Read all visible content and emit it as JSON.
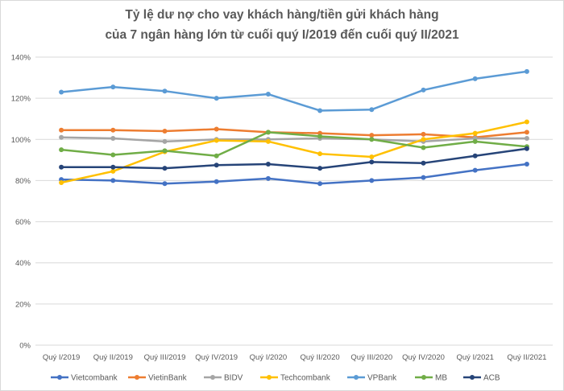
{
  "chart_data": {
    "type": "line",
    "title": "Tỷ lệ dư nợ cho vay khách hàng/tiền gửi khách hàng",
    "subtitle": "của 7 ngân hàng lớn từ cuối quý I/2019 đến cuối quý II/2021",
    "xlabel": "",
    "ylabel": "",
    "ylim": [
      0,
      140
    ],
    "yticks": [
      0,
      20,
      40,
      60,
      80,
      100,
      120,
      140
    ],
    "ytick_labels": [
      "0%",
      "20%",
      "40%",
      "60%",
      "80%",
      "100%",
      "120%",
      "140%"
    ],
    "grid": true,
    "legend_position": "bottom",
    "categories": [
      "Quý I/2019",
      "Quý II/2019",
      "Quý III/2019",
      "Quý IV/2019",
      "Quý I/2020",
      "Quý II/2020",
      "Quý III/2020",
      "Quý IV/2020",
      "Quý I/2021",
      "Quý II/2021"
    ],
    "series": [
      {
        "name": "Vietcombank",
        "color": "#4472C4",
        "values": [
          80.5,
          80,
          78.5,
          79.5,
          81,
          78.5,
          80,
          81.5,
          85,
          88
        ]
      },
      {
        "name": "VietinBank",
        "color": "#ED7D31",
        "values": [
          104.5,
          104.5,
          104,
          105,
          103.5,
          103,
          102,
          102.5,
          101,
          103.5
        ]
      },
      {
        "name": "BIDV",
        "color": "#A5A5A5",
        "values": [
          101,
          100.5,
          99,
          100,
          100,
          100.5,
          100,
          99,
          100.5,
          100.5
        ]
      },
      {
        "name": "Techcombank",
        "color": "#FFC000",
        "values": [
          79,
          84.5,
          94,
          99.5,
          99,
          93,
          91.5,
          100,
          103,
          108.5
        ]
      },
      {
        "name": "VPBank",
        "color": "#5B9BD5",
        "values": [
          123,
          125.5,
          123.5,
          120,
          122,
          114,
          114.5,
          124,
          129.5,
          133
        ]
      },
      {
        "name": "MB",
        "color": "#70AD47",
        "values": [
          95,
          92.5,
          94.5,
          92,
          103.5,
          101.5,
          100,
          96,
          99,
          96.5
        ]
      },
      {
        "name": "ACB",
        "color": "#264478",
        "values": [
          86.5,
          86.5,
          86,
          87.5,
          88,
          86,
          89,
          88.5,
          92,
          95.5
        ]
      }
    ]
  }
}
